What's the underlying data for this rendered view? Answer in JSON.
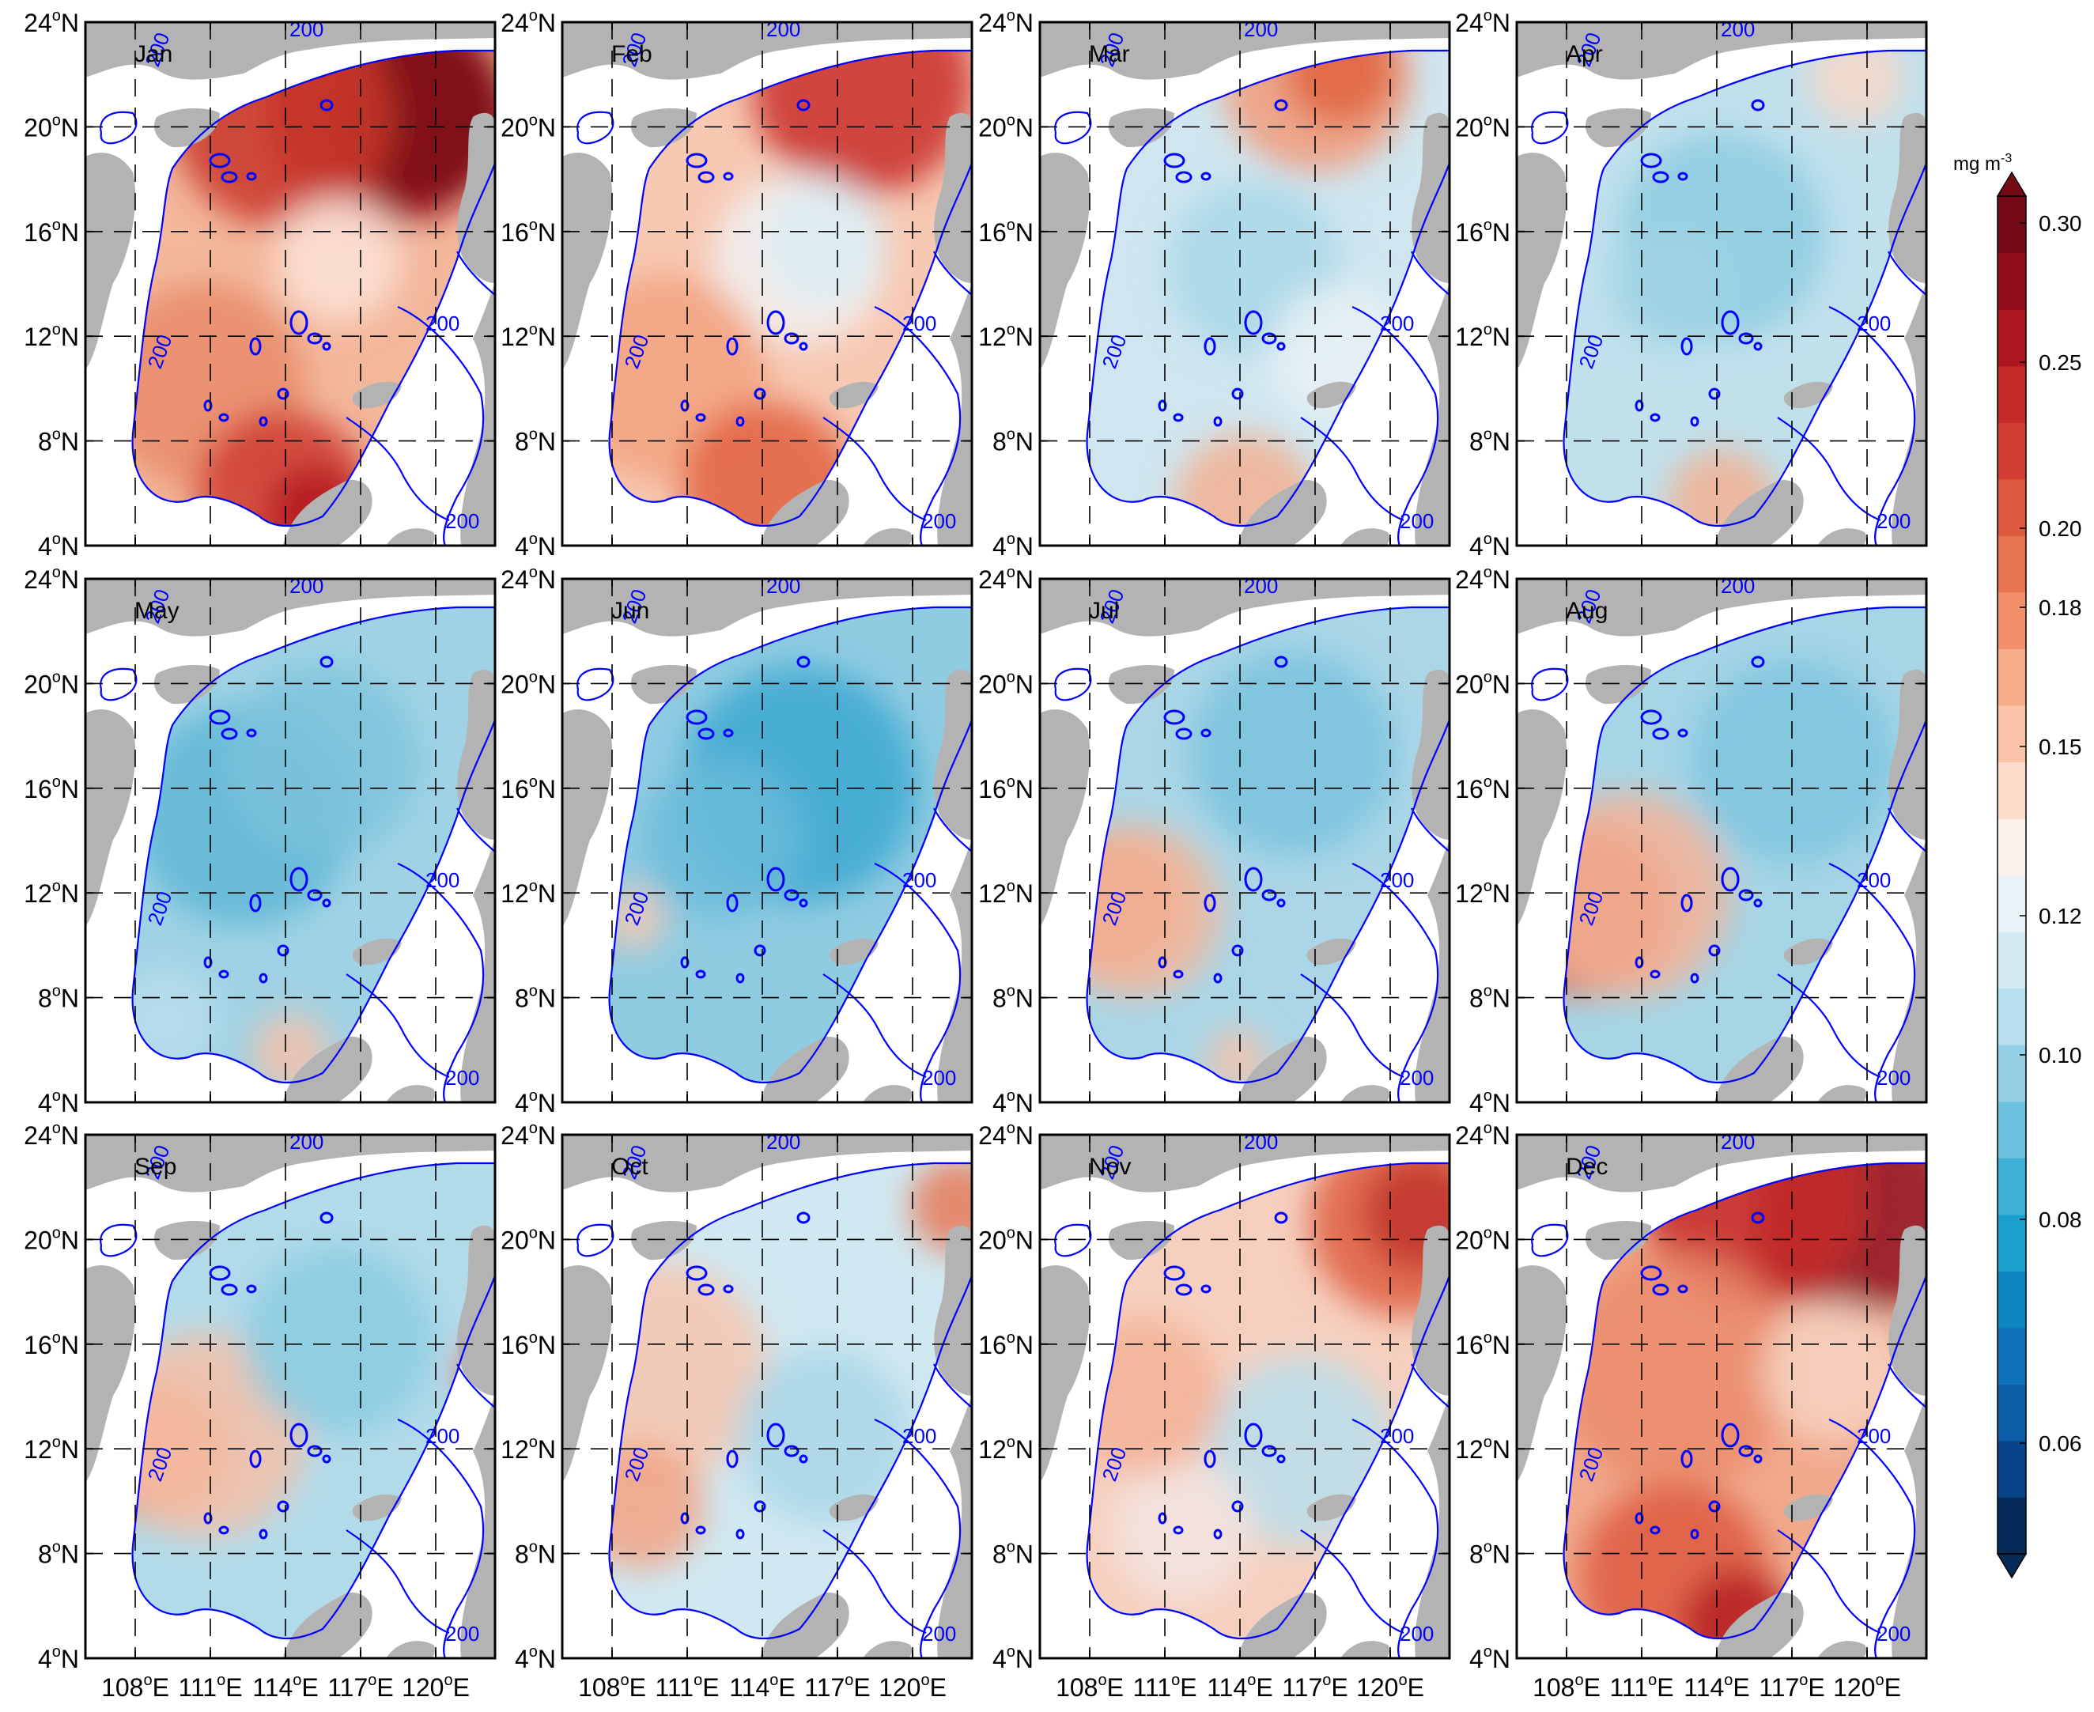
{
  "figure": {
    "months": [
      "Jan",
      "Feb",
      "Mar",
      "Apr",
      "May",
      "Jun",
      "Jul",
      "Aug",
      "Sep",
      "Oct",
      "Nov",
      "Dec"
    ],
    "x_tick_labels": [
      "108°E",
      "111°E",
      "114°E",
      "117°E",
      "120°E"
    ],
    "x_tick_parts": [
      {
        "num": "108",
        "deg": "o",
        "hemi": "E"
      },
      {
        "num": "111",
        "deg": "o",
        "hemi": "E"
      },
      {
        "num": "114",
        "deg": "o",
        "hemi": "E"
      },
      {
        "num": "117",
        "deg": "o",
        "hemi": "E"
      },
      {
        "num": "120",
        "deg": "o",
        "hemi": "E"
      }
    ],
    "y_tick_labels": [
      "24°N",
      "20°N",
      "16°N",
      "12°N",
      "8°N",
      "4°N"
    ],
    "y_tick_parts": [
      {
        "num": "24",
        "deg": "o",
        "hemi": "N"
      },
      {
        "num": "20",
        "deg": "o",
        "hemi": "N"
      },
      {
        "num": "16",
        "deg": "o",
        "hemi": "N"
      },
      {
        "num": "12",
        "deg": "o",
        "hemi": "N"
      },
      {
        "num": "8",
        "deg": "o",
        "hemi": "N"
      },
      {
        "num": "4",
        "deg": "o",
        "hemi": "N"
      }
    ],
    "contour_label": "200",
    "colorbar": {
      "unit_base": "mg m",
      "unit_exp": "-3",
      "ticks": [
        "0.30",
        "0.25",
        "0.20",
        "0.18",
        "0.15",
        "0.12",
        "0.10",
        "0.08",
        "0.06"
      ],
      "colors": [
        "#062a57",
        "#08448a",
        "#0b5ea8",
        "#0d72b8",
        "#0b86c2",
        "#1aa0cc",
        "#3eb0d6",
        "#6ec1de",
        "#96d0e6",
        "#b7dfed",
        "#d2eaf2",
        "#e9f3f7",
        "#fbf0ea",
        "#fddccb",
        "#fbc4a9",
        "#f7ab8a",
        "#f2906b",
        "#e8734f",
        "#de5a3e",
        "#d43d32",
        "#c42a28",
        "#ab1620",
        "#8f0d1c",
        "#730a16"
      ]
    },
    "colors": {
      "land": "#b3b3b3",
      "contour": "#0000ff",
      "frame": "#000000"
    }
  }
}
